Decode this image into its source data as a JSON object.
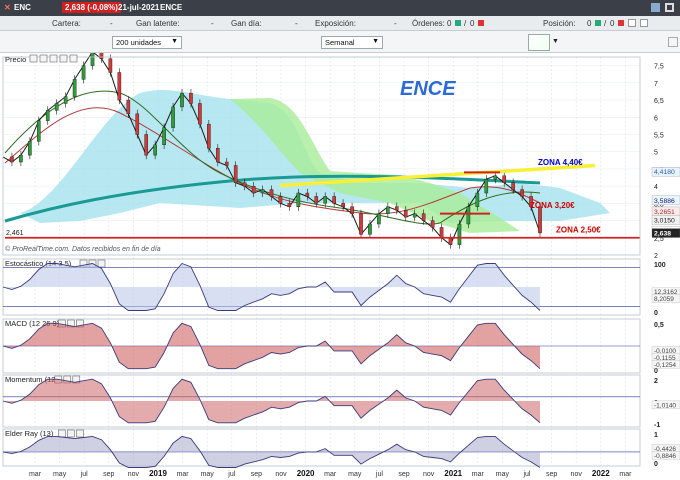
{
  "titlebar": {
    "close": "✕",
    "symbol": "ENC",
    "price": "2,638 (-0,08%)",
    "date": "21-jul-2021",
    "name": "ENCE"
  },
  "infobar": {
    "cartera": "Cartera:",
    "cartera_val": "-",
    "latente": "Gan latente:",
    "latente_val": "-",
    "gandia": "Gan día:",
    "gandia_val": "-",
    "exposicion": "Exposición:",
    "exposicion_val": "-",
    "ordenes": "Órdenes:",
    "ordenes_a": "0",
    "ordenes_b": "0",
    "posicion": "Posición:",
    "posicion_a": "0",
    "posicion_b": "0"
  },
  "toolbar": {
    "units": "200 unidades",
    "period": "Semanal"
  },
  "chart_data": {
    "type": "line",
    "x_ticks": [
      "mar",
      "may",
      "jul",
      "sep",
      "nov",
      "2019",
      "mar",
      "may",
      "jul",
      "sep",
      "nov",
      "2020",
      "mar",
      "may",
      "jul",
      "sep",
      "nov",
      "2021",
      "mar",
      "may",
      "jul",
      "sep",
      "nov",
      "2022",
      "mar"
    ],
    "price": {
      "label": "Precio",
      "title": "ENCE",
      "yticks": [
        "7,5",
        "7",
        "6,5",
        "6",
        "5,5",
        "5",
        "4,5",
        "4",
        "3,5",
        "3",
        "2,5",
        "2"
      ],
      "ylim": [
        2,
        7.75
      ],
      "close": [
        4.85,
        4.7,
        4.9,
        5.3,
        5.9,
        6.2,
        6.4,
        6.6,
        7.1,
        7.5,
        7.9,
        7.7,
        7.3,
        6.5,
        6.1,
        5.5,
        4.9,
        5.2,
        5.7,
        6.3,
        6.7,
        6.4,
        5.8,
        5.1,
        4.7,
        4.6,
        4.1,
        4.0,
        3.8,
        3.9,
        3.7,
        3.5,
        3.4,
        3.8,
        3.7,
        3.5,
        3.7,
        3.5,
        3.4,
        3.2,
        2.6,
        2.9,
        3.2,
        3.4,
        3.3,
        3.1,
        3.2,
        3.0,
        2.8,
        2.5,
        2.3,
        2.9,
        3.4,
        3.8,
        4.2,
        4.3,
        4.1,
        3.9,
        3.7,
        3.4,
        2.64
      ],
      "zones": [
        {
          "label": "ZONA 4,40€",
          "value": 4.4,
          "color": "#0000cc"
        },
        {
          "label": "ZONA 3,20€",
          "value": 3.2,
          "color": "#cc0000"
        },
        {
          "label": "ZONA 2,50€",
          "value": 2.5,
          "color": "#cc0000"
        }
      ],
      "last_labels": {
        "price": "2,638",
        "a": "4,4180",
        "b": "3,5886",
        "c": "3,2651",
        "d": "3,0150",
        "e": "2,6886",
        "left": "2,461"
      },
      "watermark": "© ProRealTime.com. Datos recibidos en fin de día"
    },
    "panels": [
      {
        "label": "Estocástico (14 3 5)",
        "yticks": [
          "100",
          "0"
        ],
        "last": [
          "12,3162",
          "8,2059"
        ]
      },
      {
        "label": "MACD (12 26 9)",
        "yticks": [
          "0,5",
          "0"
        ],
        "last": [
          "-0,0100",
          "-0,1155",
          "-0,1254"
        ]
      },
      {
        "label": "Momentum (12)",
        "yticks": [
          "2",
          "0",
          "-1"
        ],
        "last": [
          "-1,0140"
        ]
      },
      {
        "label": "Elder Ray (13)",
        "yticks": [
          "1",
          "0"
        ],
        "last": [
          "-0,4426",
          "-0,8846"
        ]
      }
    ]
  }
}
